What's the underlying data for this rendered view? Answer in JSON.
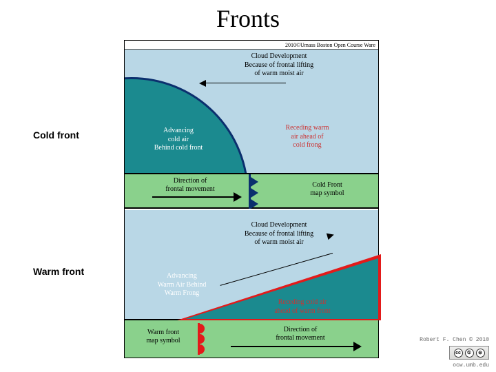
{
  "title": "Fronts",
  "side_labels": {
    "cold": "Cold front",
    "warm": "Warm front"
  },
  "colors": {
    "sky": "#b9d7e6",
    "land": "#8ad18c",
    "cold_air": "#1b8a8f",
    "cold_line": "#0b2f6e",
    "warm_line": "#e31a1a",
    "reced_text": "#c33"
  },
  "cold": {
    "copyright": "2010©Umass Boston Open Course Ware",
    "cloud_dev": "Cloud Development\nBecause of frontal lifting\nof warm moist air",
    "advancing": "Advancing\ncold air\nBehind cold front",
    "receding": "Receding warm\nair ahead of\ncold frong",
    "direction": "Direction of\nfrontal movement",
    "map_symbol": "Cold Front\nmap symbol",
    "symbol_triangles_y": [
      4,
      20,
      36
    ]
  },
  "warm": {
    "cloud_dev": "Cloud Development\nBecause of frontal lifting\nof warm moist air",
    "advancing": "Advancing\nWarm Air Behind\nWarm Frong",
    "receding": "Receding cold air\nahead of warm front",
    "direction": "Direction of\nfrontal movement",
    "map_symbol": "Warm front\nmap symbol",
    "bumps_y": [
      5,
      20,
      35
    ]
  },
  "credit": "Robert F. Chen © 2010",
  "ocw_url": "ocw.umb.edu",
  "cc_parts": [
    "cc",
    "①",
    "⊜"
  ]
}
